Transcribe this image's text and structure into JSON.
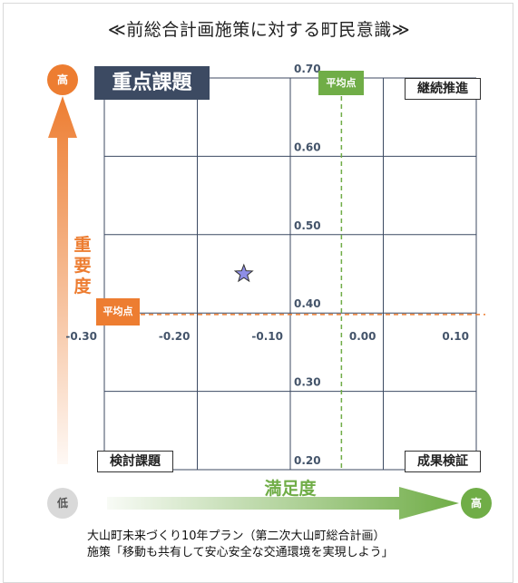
{
  "title": "≪前総合計画施策に対する町民意識≫",
  "quadrants": {
    "priority": "重点課題",
    "continue": "継続推進",
    "review": "検討課題",
    "result": "成果検証"
  },
  "average_tag": "平均点",
  "importance_axis": {
    "label": "重要度",
    "high": "高"
  },
  "satisfaction_axis": {
    "label": "満足度",
    "low": "低",
    "high": "高"
  },
  "caption": {
    "line1": "大山町未来づくり10年プラン（第二次大山町総合計画）",
    "line2": "施策「移動も共有して安心安全な交通環境を実現しよう」"
  },
  "colors": {
    "importance": "#ed7d31",
    "satisfaction": "#70ad47",
    "quadrant_key": "#3c4a62",
    "grid": "#3c4a62",
    "marker": "#8e8ee6"
  },
  "chart_data": {
    "type": "scatter",
    "xlim": [
      -0.3,
      0.1
    ],
    "ylim": [
      0.2,
      0.7
    ],
    "x_ticks": [
      -0.3,
      -0.2,
      -0.1,
      0.0,
      0.1
    ],
    "x_tick_labels": [
      "-0.30",
      "-0.20",
      "-0.10",
      "0.00",
      "0.10"
    ],
    "y_ticks": [
      0.2,
      0.3,
      0.4,
      0.5,
      0.6,
      0.7
    ],
    "y_tick_labels": [
      "0.20",
      "0.30",
      "0.40",
      "0.50",
      "0.60",
      "0.70"
    ],
    "x_average": -0.045,
    "y_average": 0.398,
    "points": [
      {
        "x": -0.15,
        "y": 0.45,
        "marker": "star"
      }
    ],
    "grid": true
  }
}
